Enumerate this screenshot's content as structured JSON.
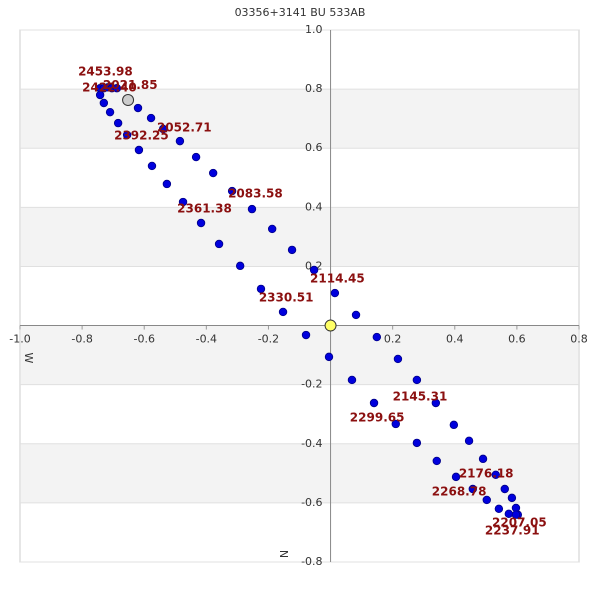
{
  "chart_data": {
    "type": "scatter",
    "title": "03356+3141 BU  533AB",
    "x_label": "W",
    "y_label": "N",
    "xlim": [
      -1.0,
      0.8
    ],
    "ylim": [
      -0.8,
      1.0
    ],
    "xticks": [
      {
        "value": -1.0,
        "label": "-1.0"
      },
      -0.8,
      -0.6,
      -0.4,
      -0.2,
      0.2,
      0.4,
      0.6,
      0.8
    ],
    "yticks": [
      -0.8,
      -0.6,
      -0.4,
      -0.2,
      0.2,
      0.4,
      0.6,
      0.8,
      {
        "value": 1.0,
        "label": "1.0"
      }
    ],
    "grid": true,
    "color": "#0000dd",
    "x": [
      -0.742,
      -0.73,
      -0.717,
      -0.704,
      -0.688,
      -0.742,
      -0.73,
      -0.62,
      -0.578,
      -0.539,
      -0.485,
      -0.433,
      -0.378,
      -0.317,
      -0.253,
      -0.188,
      -0.124,
      -0.053,
      0.014,
      0.082,
      0.149,
      0.217,
      0.278,
      0.339,
      0.397,
      0.446,
      0.491,
      0.532,
      0.561,
      0.584,
      0.597,
      0.603,
      -0.71,
      -0.684,
      -0.655,
      -0.617,
      -0.575,
      -0.527,
      -0.475,
      -0.417,
      -0.359,
      -0.291,
      -0.224,
      -0.153,
      -0.079,
      -0.005,
      0.069,
      0.14,
      0.21,
      0.278,
      0.342,
      0.404,
      0.458,
      0.503,
      0.542,
      0.574,
      0.597
    ],
    "y": [
      0.803,
      0.803,
      0.806,
      0.803,
      0.803,
      0.78,
      0.753,
      0.736,
      0.702,
      0.665,
      0.624,
      0.57,
      0.516,
      0.455,
      0.394,
      0.327,
      0.256,
      0.188,
      0.11,
      0.036,
      -0.039,
      -0.113,
      -0.184,
      -0.262,
      -0.336,
      -0.39,
      -0.451,
      -0.505,
      -0.553,
      -0.583,
      -0.617,
      -0.64,
      0.722,
      0.685,
      0.645,
      0.594,
      0.54,
      0.479,
      0.418,
      0.347,
      0.276,
      0.202,
      0.124,
      0.046,
      -0.032,
      -0.106,
      -0.184,
      -0.262,
      -0.333,
      -0.397,
      -0.458,
      -0.512,
      -0.553,
      -0.59,
      -0.62,
      -0.637,
      -0.64
    ],
    "markers": [
      {
        "x": -0.652,
        "y": 0.763,
        "color": "#cccccc"
      },
      {
        "x": 0,
        "y": 0,
        "color": "#ffff66"
      }
    ],
    "annotations": [
      {
        "text": "2453.98",
        "x": -0.813,
        "y": 0.858
      },
      {
        "text": "2422.40",
        "x": -0.8,
        "y": 0.803
      },
      {
        "text": "2021.85",
        "x": -0.733,
        "y": 0.813
      },
      {
        "text": "2392.25",
        "x": -0.697,
        "y": 0.641
      },
      {
        "text": "2052.71",
        "x": -0.559,
        "y": 0.668
      },
      {
        "text": "2083.58",
        "x": -0.33,
        "y": 0.445
      },
      {
        "text": "2361.38",
        "x": -0.494,
        "y": 0.394
      },
      {
        "text": "2114.45",
        "x": -0.066,
        "y": 0.158
      },
      {
        "text": "2330.51",
        "x": -0.231,
        "y": 0.093
      },
      {
        "text": "2145.31",
        "x": 0.2,
        "y": -0.242
      },
      {
        "text": "2299.65",
        "x": 0.062,
        "y": -0.313
      },
      {
        "text": "2176.18",
        "x": 0.413,
        "y": -0.502
      },
      {
        "text": "2268.78",
        "x": 0.326,
        "y": -0.563
      },
      {
        "text": "2207.05",
        "x": 0.52,
        "y": -0.668
      },
      {
        "text": "2237.91",
        "x": 0.497,
        "y": -0.695
      }
    ]
  }
}
